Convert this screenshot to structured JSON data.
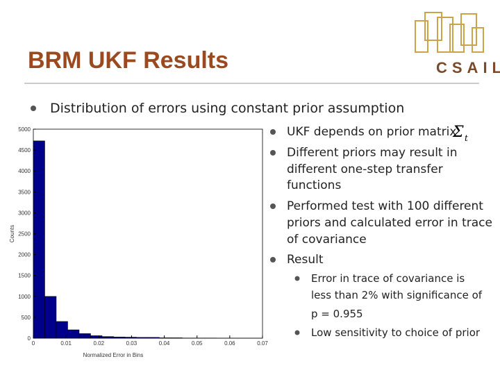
{
  "header": {
    "title": "BRM UKF Results",
    "logo": "CSAIL"
  },
  "bullet": "Distribution of errors using constant prior assumption",
  "histogram": {
    "type": "histogram",
    "xlabel": "Normalized Error in Bins",
    "ylabel": "Counts",
    "bins": [
      0,
      0.0035,
      0.007,
      0.0105,
      0.014,
      0.0175,
      0.021,
      0.0245,
      0.028,
      0.0315,
      0.035,
      0.0385,
      0.042,
      0.0455,
      0.049,
      0.0525,
      0.056,
      0.0595,
      0.063,
      0.0665,
      0.07
    ],
    "counts": [
      4720,
      1000,
      400,
      200,
      110,
      60,
      40,
      30,
      25,
      20,
      20,
      10,
      10,
      5,
      5,
      5,
      3,
      2,
      2,
      2
    ],
    "color": "#00008b",
    "xlim": [
      0,
      0.07
    ],
    "ylim": [
      0,
      5000
    ],
    "xticks": [
      0,
      0.01,
      0.02,
      0.03,
      0.04,
      0.05,
      0.06,
      0.07
    ],
    "yticks": [
      0,
      500,
      1000,
      1500,
      2000,
      2500,
      3000,
      3500,
      4000,
      4500,
      5000
    ]
  },
  "points": [
    {
      "lines": [
        "UKF depends on prior matrix"
      ],
      "symbol": "Σ",
      "subscript": "t"
    },
    {
      "lines": [
        "Different priors may result in",
        "different one-step transfer",
        "functions"
      ]
    },
    {
      "lines": [
        "Performed test with 100 different",
        "priors and calculated error in trace",
        "of  covariance"
      ]
    },
    {
      "lines": [
        "Result"
      ],
      "sub": [
        {
          "lines": [
            "Error in trace of covariance is",
            "less than 2% with significance of",
            "p = 0.955"
          ]
        },
        {
          "lines": [
            "Low sensitivity to choice of prior"
          ]
        }
      ]
    }
  ]
}
